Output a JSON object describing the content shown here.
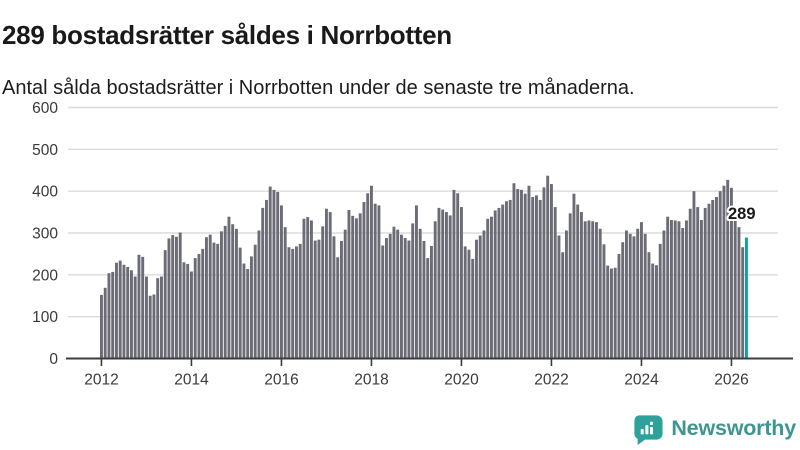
{
  "header": {
    "title": "289 bostadsrätter såldes i Norrbotten",
    "subtitle": "Antal sålda bostadsrätter i Norrbotten under de senaste tre månaderna."
  },
  "chart_data": {
    "type": "bar",
    "title": "289 bostadsrätter såldes i Norrbotten",
    "xlabel": "",
    "ylabel": "",
    "ylim": [
      0,
      600
    ],
    "yticks": [
      0,
      100,
      200,
      300,
      400,
      500,
      600
    ],
    "grid": true,
    "x_start_year": 2012,
    "x_unit": "month",
    "x_tick_labels": [
      2012,
      2014,
      2016,
      2018,
      2020,
      2022,
      2024,
      2026
    ],
    "bar_color": "#6C6C76",
    "gridline_color": "#DBDBDB",
    "axis_color": "#3C3C3C",
    "highlight_color": "#0AA1A0",
    "highlight_value": 289,
    "highlight_label": "289",
    "values": [
      152,
      169,
      204,
      207,
      229,
      234,
      224,
      219,
      211,
      196,
      248,
      243,
      196,
      150,
      153,
      192,
      196,
      259,
      287,
      295,
      291,
      301,
      230,
      226,
      208,
      240,
      250,
      262,
      290,
      296,
      277,
      274,
      304,
      317,
      339,
      321,
      310,
      265,
      227,
      214,
      244,
      272,
      306,
      360,
      379,
      411,
      403,
      398,
      366,
      314,
      266,
      262,
      268,
      274,
      334,
      338,
      330,
      282,
      284,
      316,
      358,
      350,
      292,
      242,
      281,
      308,
      355,
      341,
      335,
      347,
      374,
      395,
      413,
      370,
      366,
      270,
      288,
      298,
      315,
      308,
      296,
      288,
      282,
      323,
      366,
      310,
      281,
      240,
      269,
      328,
      360,
      356,
      350,
      342,
      403,
      395,
      362,
      268,
      260,
      238,
      284,
      294,
      306,
      334,
      339,
      354,
      360,
      368,
      376,
      379,
      419,
      405,
      403,
      394,
      413,
      386,
      390,
      379,
      409,
      437,
      417,
      362,
      294,
      254,
      306,
      347,
      394,
      368,
      350,
      328,
      330,
      328,
      326,
      310,
      273,
      222,
      215,
      217,
      250,
      278,
      306,
      298,
      292,
      310,
      326,
      298,
      254,
      227,
      223,
      274,
      306,
      339,
      331,
      330,
      328,
      312,
      330,
      358,
      400,
      362,
      331,
      360,
      370,
      379,
      386,
      400,
      413,
      427,
      408,
      355,
      314,
      266,
      289
    ]
  },
  "footer": {
    "brand": "Newsworthy",
    "brand_color": "#3D968F",
    "icon": "newsworthy-bubble-chart-icon",
    "icon_color": "#2EA29A"
  }
}
